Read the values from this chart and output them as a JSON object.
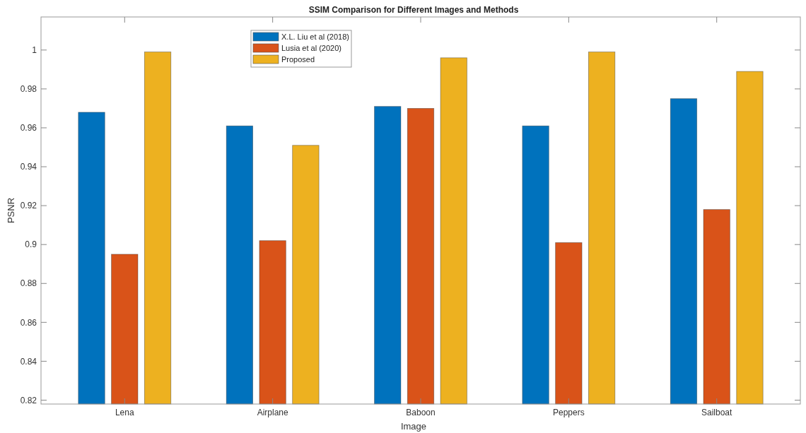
{
  "chart_data": {
    "type": "bar",
    "title": "SSIM Comparison for Different Images and Methods",
    "xlabel": "Image",
    "ylabel": "PSNR",
    "categories": [
      "Lena",
      "Airplane",
      "Baboon",
      "Peppers",
      "Sailboat"
    ],
    "series": [
      {
        "name": "X.L. Liu et al (2018)",
        "color": "#0072bd",
        "values": [
          0.968,
          0.961,
          0.971,
          0.961,
          0.975
        ]
      },
      {
        "name": "Lusia et al (2020)",
        "color": "#d95319",
        "values": [
          0.895,
          0.902,
          0.97,
          0.901,
          0.918
        ]
      },
      {
        "name": "Proposed",
        "color": "#edb120",
        "values": [
          0.999,
          0.951,
          0.996,
          0.999,
          0.989
        ]
      }
    ],
    "ylim": [
      0.818,
      1.017
    ],
    "yticks": [
      0.82,
      0.84,
      0.86,
      0.88,
      0.9,
      0.92,
      0.94,
      0.96,
      0.98,
      1
    ],
    "grid": false,
    "legend": "top left"
  }
}
